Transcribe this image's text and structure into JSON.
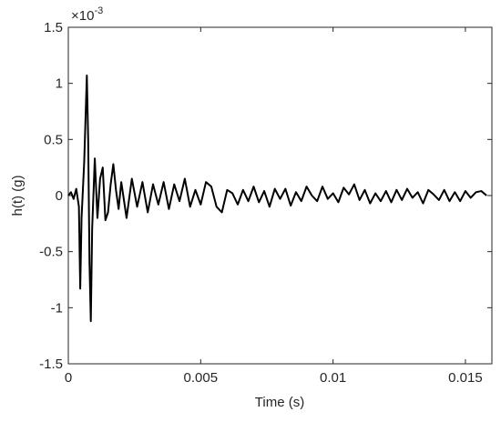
{
  "chart_data": {
    "type": "line",
    "xlabel": "Time (s)",
    "ylabel": "h(t) (g)",
    "y_multiplier": "×10",
    "y_multiplier_exp": "-3",
    "xlim": [
      0,
      0.016
    ],
    "xticks": [
      0,
      0.005,
      0.01,
      0.015
    ],
    "ylim": [
      -1.5,
      1.5
    ],
    "yticks": [
      -1.5,
      -1,
      -0.5,
      0,
      0.5,
      1,
      1.5
    ],
    "grid": false,
    "x": [
      0,
      0.0001,
      0.0002,
      0.0003,
      0.0004,
      0.00045,
      0.0005,
      0.0006,
      0.0007,
      0.00075,
      0.0008,
      0.00085,
      0.0009,
      0.001,
      0.0011,
      0.0012,
      0.0013,
      0.0014,
      0.0015,
      0.0016,
      0.0017,
      0.0018,
      0.0019,
      0.002,
      0.0022,
      0.0024,
      0.0026,
      0.0028,
      0.003,
      0.0032,
      0.0034,
      0.0036,
      0.0038,
      0.004,
      0.0042,
      0.0044,
      0.0046,
      0.0048,
      0.005,
      0.0052,
      0.0054,
      0.0056,
      0.0058,
      0.006,
      0.0062,
      0.0064,
      0.0066,
      0.0068,
      0.007,
      0.0072,
      0.0074,
      0.0076,
      0.0078,
      0.008,
      0.0082,
      0.0084,
      0.0086,
      0.0088,
      0.009,
      0.0092,
      0.0094,
      0.0096,
      0.0098,
      0.01,
      0.0102,
      0.0104,
      0.0106,
      0.0108,
      0.011,
      0.0112,
      0.0114,
      0.0116,
      0.0118,
      0.012,
      0.0122,
      0.0124,
      0.0126,
      0.0128,
      0.013,
      0.0132,
      0.0134,
      0.0136,
      0.0138,
      0.014,
      0.0142,
      0.0144,
      0.0146,
      0.0148,
      0.015,
      0.0152,
      0.0154,
      0.0156,
      0.0158
    ],
    "series": [
      {
        "name": "h(t)",
        "color": "#000000",
        "values": [
          0,
          0.03,
          -0.03,
          0.06,
          -0.1,
          -0.83,
          -0.2,
          0.3,
          1.07,
          0.5,
          -0.6,
          -1.12,
          -0.3,
          0.33,
          -0.2,
          0.15,
          0.25,
          -0.22,
          -0.15,
          0.1,
          0.28,
          0.05,
          -0.12,
          0.12,
          -0.2,
          0.15,
          -0.1,
          0.12,
          -0.15,
          0.1,
          -0.08,
          0.12,
          -0.12,
          0.1,
          -0.05,
          0.15,
          -0.1,
          0.05,
          -0.08,
          0.12,
          0.08,
          -0.1,
          -0.15,
          0.05,
          0.02,
          -0.08,
          0.05,
          -0.05,
          0.08,
          -0.06,
          0.04,
          -0.1,
          0.06,
          -0.03,
          0.06,
          -0.09,
          0.03,
          -0.05,
          0.08,
          0,
          -0.05,
          0.08,
          -0.03,
          0.02,
          -0.06,
          0.07,
          0.01,
          0.1,
          -0.04,
          0.05,
          -0.07,
          0.02,
          -0.05,
          0.04,
          -0.06,
          0.05,
          -0.04,
          0.06,
          -0.02,
          0.03,
          -0.07,
          0.05,
          0.01,
          -0.04,
          0.05,
          -0.05,
          0.03,
          -0.05,
          0.04,
          -0.02,
          0.03,
          0.04,
          0
        ]
      }
    ]
  }
}
